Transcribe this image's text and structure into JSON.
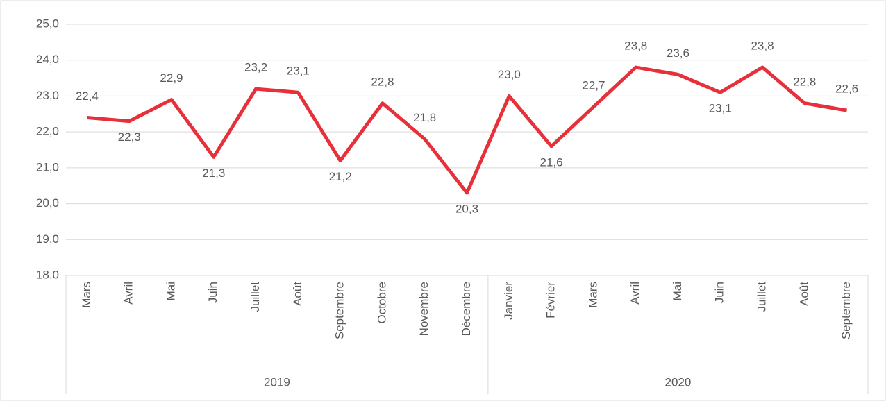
{
  "chart_data": {
    "type": "line",
    "categories": [
      "Mars",
      "Avril",
      "Mai",
      "Juin",
      "Juillet",
      "Août",
      "Septembre",
      "Octobre",
      "Novembre",
      "Décembre",
      "Janvier",
      "Février",
      "Mars",
      "Avril",
      "Mai",
      "Juin",
      "Juillet",
      "Août",
      "Septembre"
    ],
    "x_groups": [
      {
        "label": "2019",
        "size": 10
      },
      {
        "label": "2020",
        "size": 9
      }
    ],
    "values": [
      22.4,
      22.3,
      22.9,
      21.3,
      23.2,
      23.1,
      21.2,
      22.8,
      21.8,
      20.3,
      23.0,
      21.6,
      22.7,
      23.8,
      23.6,
      23.1,
      23.8,
      22.8,
      22.6
    ],
    "value_labels": [
      "22,4",
      "22,3",
      "22,9",
      "21,3",
      "23,2",
      "23,1",
      "21,2",
      "22,8",
      "21,8",
      "20,3",
      "23,0",
      "21,6",
      "22,7",
      "23,8",
      "23,6",
      "23,1",
      "23,8",
      "22,8",
      "22,6"
    ],
    "color": "#e8303a",
    "ylim": [
      18,
      25
    ],
    "yticks": [
      {
        "value": 18,
        "label": "18,0"
      },
      {
        "value": 19,
        "label": "19,0"
      },
      {
        "value": 20,
        "label": "20,0"
      },
      {
        "value": 21,
        "label": "21,0"
      },
      {
        "value": 22,
        "label": "22,0"
      },
      {
        "value": 23,
        "label": "23,0"
      },
      {
        "value": 24,
        "label": "24,0"
      },
      {
        "value": 25,
        "label": "25,0"
      }
    ],
    "grid": true
  }
}
